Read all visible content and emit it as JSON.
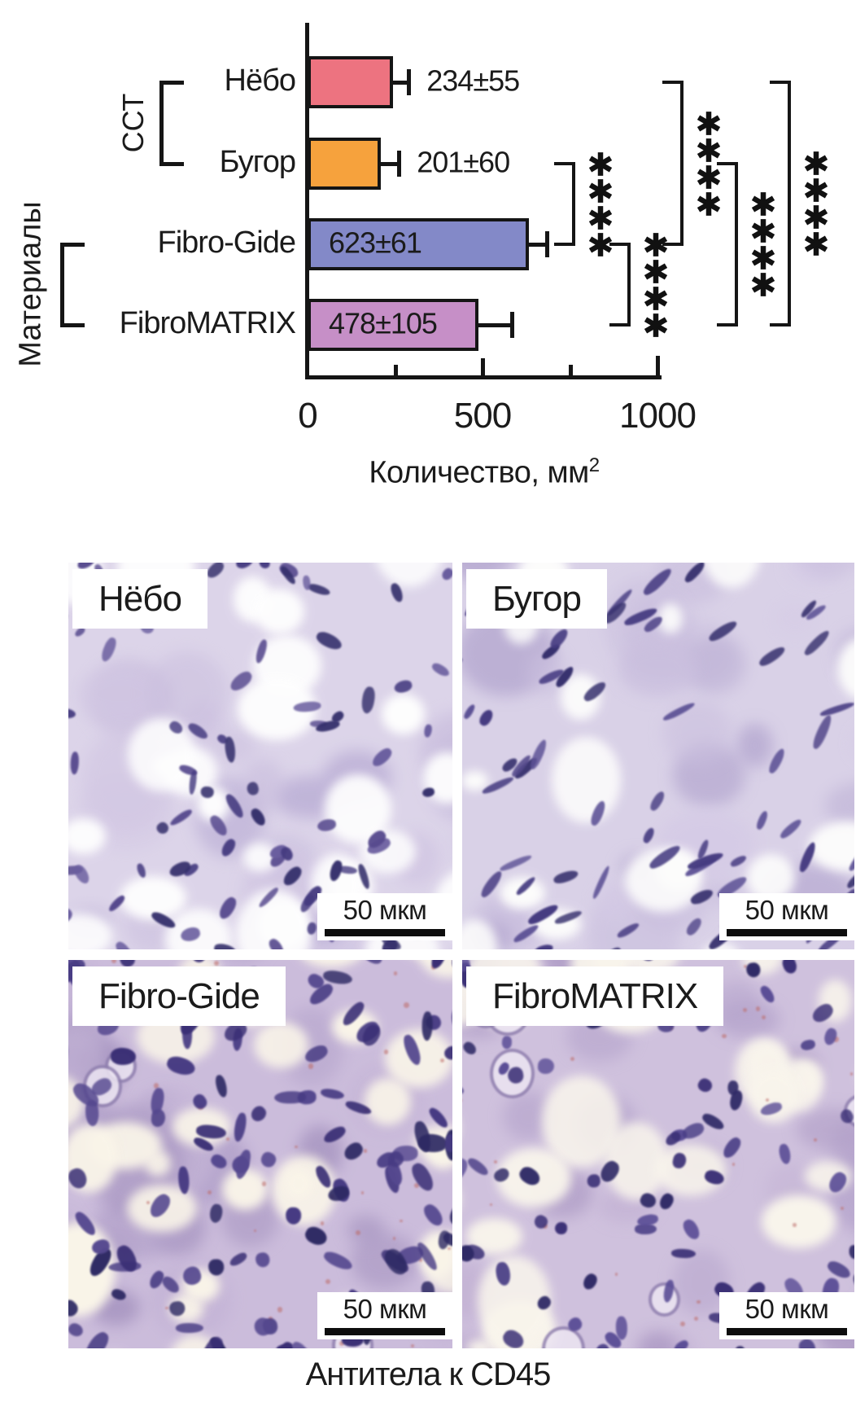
{
  "chart_data": {
    "type": "bar",
    "orientation": "horizontal",
    "title": "",
    "categories": [
      "Нёбо",
      "Бугор",
      "Fibro-Gide",
      "FibroMATRIX"
    ],
    "values": [
      234,
      201,
      623,
      478
    ],
    "errors": [
      55,
      60,
      61,
      105
    ],
    "value_labels": [
      "234±55",
      "201±60",
      "623±61",
      "478±105"
    ],
    "bar_colors": [
      "#ed7380",
      "#f6a23d",
      "#8389c8",
      "#c68fc7"
    ],
    "xlabel": "Количество, мм²",
    "xlabel_base": "Количество, мм",
    "xlabel_sup": "2",
    "xlim": [
      0,
      1050
    ],
    "xticks": [
      0,
      500,
      1000
    ],
    "xticks_minor": [
      250,
      750
    ],
    "grid": false,
    "legend": "none",
    "category_groups": [
      {
        "label": "ССТ",
        "categories": [
          "Нёбо",
          "Бугор"
        ]
      },
      {
        "label": "Материалы",
        "categories": [
          "Fibro-Gide",
          "FibroMATRIX"
        ]
      }
    ],
    "significance_brackets": [
      {
        "between": [
          "Бугор",
          "Fibro-Gide"
        ],
        "label": "****"
      },
      {
        "between": [
          "Fibro-Gide",
          "FibroMATRIX"
        ],
        "label": "****"
      },
      {
        "between": [
          "Нёбо",
          "Fibro-Gide"
        ],
        "label": "****"
      },
      {
        "between": [
          "Бугор",
          "FibroMATRIX"
        ],
        "label": "****"
      },
      {
        "between": [
          "Нёбо",
          "FibroMATRIX"
        ],
        "label": "****"
      }
    ]
  },
  "micrographs": {
    "panels": [
      {
        "label": "Нёбо",
        "scale_label": "50 мкм"
      },
      {
        "label": "Бугор",
        "scale_label": "50 мкм"
      },
      {
        "label": "Fibro-Gide",
        "scale_label": "50 мкм"
      },
      {
        "label": "FibroMATRIX",
        "scale_label": "50 мкм"
      }
    ],
    "caption": "Антитела к CD45"
  }
}
